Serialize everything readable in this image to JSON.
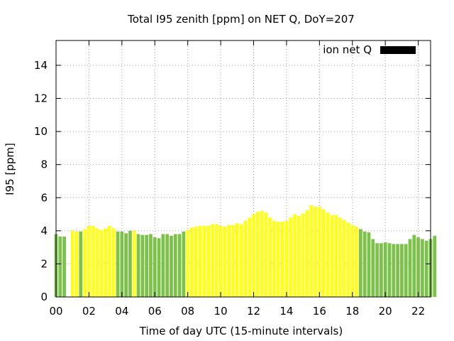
{
  "chart_data": {
    "type": "bar",
    "title": "Total I95 zenith [ppm] on NET Q, DoY=207",
    "xlabel": "Time of day UTC (15-minute intervals)",
    "ylabel": "I95 [ppm]",
    "xlim": [
      0,
      22.75
    ],
    "ylim": [
      0,
      15.5
    ],
    "xticks": [
      "00",
      "02",
      "04",
      "06",
      "08",
      "10",
      "12",
      "14",
      "16",
      "18",
      "20",
      "22"
    ],
    "yticks": [
      "0",
      "2",
      "4",
      "6",
      "8",
      "10",
      "12",
      "14"
    ],
    "grid": true,
    "legend": {
      "label": "ion net Q",
      "color": "#000000",
      "placement": "top-right"
    },
    "category_colors": {
      "G": "#7cc24a",
      "Y": "#ffff1a"
    },
    "interval_hours": 0.25,
    "values": [
      3.8,
      3.65,
      3.65,
      0,
      4.0,
      3.95,
      3.95,
      4.1,
      4.3,
      4.3,
      4.15,
      4.05,
      4.15,
      4.3,
      4.15,
      3.95,
      3.95,
      3.85,
      4.0,
      4.0,
      3.8,
      3.75,
      3.75,
      3.8,
      3.6,
      3.55,
      3.8,
      3.8,
      3.7,
      3.8,
      3.8,
      3.95,
      4.05,
      4.2,
      4.25,
      4.3,
      4.3,
      4.3,
      4.4,
      4.4,
      4.3,
      4.25,
      4.35,
      4.35,
      4.45,
      4.4,
      4.6,
      4.8,
      5.0,
      5.15,
      5.2,
      5.1,
      4.8,
      4.6,
      4.55,
      4.55,
      4.6,
      4.8,
      5.0,
      4.9,
      5.05,
      5.25,
      5.55,
      5.45,
      5.45,
      5.3,
      5.1,
      4.95,
      4.95,
      4.8,
      4.65,
      4.5,
      4.35,
      4.25,
      4.1,
      3.95,
      3.9,
      3.5,
      3.25,
      3.25,
      3.3,
      3.25,
      3.2,
      3.2,
      3.2,
      3.2,
      3.5,
      3.75,
      3.6,
      3.5,
      3.4,
      3.5,
      3.7
    ],
    "categories": "GGGGYYGYYYYYYYYGGGGYGGGGGGGGGGGGYYYYYYYYYYYYYYYYYYYYYYYYYYYYYYYYYYYYYYYYYYGGGGGGGGGGGGGGGGGGG"
  }
}
